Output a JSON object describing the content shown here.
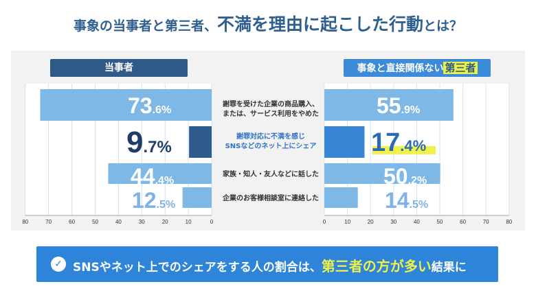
{
  "title": {
    "part1": "事象の当事者と第三者、",
    "part2": "不満を理由に起こした行動",
    "part3": "とは？"
  },
  "headers": {
    "left": "当事者",
    "right_prefix": "事象と直接関係ない",
    "right_highlight": "第三者"
  },
  "chart_data": {
    "type": "bar",
    "orientation": "horizontal",
    "layout": "back-to-back",
    "categories": [
      "謝罪を受けた企業の商品購入、\nまたは、サービス利用をやめた",
      "謝罪対応に不満を感じ\nSNSなどのネット上にシェア",
      "家族・知人・友人などに話した",
      "企業のお客様相談室に連絡した"
    ],
    "highlight_category_index": 1,
    "series": [
      {
        "name": "当事者",
        "values": [
          73.6,
          9.7,
          44.4,
          12.5
        ],
        "value_labels": [
          {
            "int": "73",
            "dec": ".6%"
          },
          {
            "int": "9",
            "dec": ".7%"
          },
          {
            "int": "44",
            "dec": ".4%"
          },
          {
            "int": "12",
            "dec": ".5%"
          }
        ],
        "colors": [
          "#7db8e6",
          "#2e5c8c",
          "#7db8e6",
          "#7db8e6"
        ]
      },
      {
        "name": "事象と直接関係ない第三者",
        "values": [
          55.9,
          17.4,
          50.2,
          14.5
        ],
        "value_labels": [
          {
            "int": "55",
            "dec": ".9%"
          },
          {
            "int": "17",
            "dec": ".4%"
          },
          {
            "int": "50",
            "dec": ".2%"
          },
          {
            "int": "14",
            "dec": ".5%"
          }
        ],
        "colors": [
          "#7db8e6",
          "#3a86d6",
          "#7db8e6",
          "#7db8e6"
        ]
      }
    ],
    "xlim": [
      0,
      80
    ],
    "left_ticks": [
      "80",
      "70",
      "60",
      "50",
      "40",
      "30",
      "20",
      "10",
      "0"
    ],
    "right_ticks": [
      "0",
      "10",
      "20",
      "30",
      "40",
      "50",
      "60",
      "70",
      "80"
    ],
    "grid": true
  },
  "banner": {
    "icon": "check-circle-icon",
    "text_start": "SNSやネット上でのシェアをする人の割合は、",
    "text_highlight": "第三者の方が多い",
    "text_end": "結果に"
  }
}
